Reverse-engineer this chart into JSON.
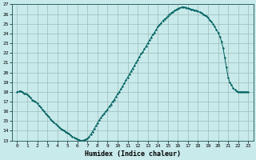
{
  "title": "",
  "xlabel": "Humidex (Indice chaleur)",
  "bg_color": "#c8eaea",
  "grid_color": "#b0cccc",
  "line_color": "#006060",
  "marker_color": "#006060",
  "xlim": [
    -0.5,
    23.5
  ],
  "ylim": [
    13,
    27
  ],
  "yticks": [
    13,
    14,
    15,
    16,
    17,
    18,
    19,
    20,
    21,
    22,
    23,
    24,
    25,
    26,
    27
  ],
  "xticks": [
    0,
    1,
    2,
    3,
    4,
    5,
    6,
    7,
    8,
    9,
    10,
    11,
    12,
    13,
    14,
    15,
    16,
    17,
    18,
    19,
    20,
    21,
    22,
    23
  ],
  "x_data": [
    0.0,
    0.167,
    0.333,
    0.5,
    0.667,
    0.833,
    1.0,
    1.167,
    1.333,
    1.5,
    1.667,
    1.833,
    2.0,
    2.167,
    2.333,
    2.5,
    2.667,
    2.833,
    3.0,
    3.167,
    3.333,
    3.5,
    3.667,
    3.833,
    4.0,
    4.167,
    4.333,
    4.5,
    4.667,
    4.833,
    5.0,
    5.167,
    5.333,
    5.5,
    5.667,
    5.833,
    6.0,
    6.167,
    6.333,
    6.5,
    6.667,
    6.833,
    7.0,
    7.167,
    7.333,
    7.5,
    7.667,
    7.833,
    8.0,
    8.167,
    8.333,
    8.5,
    8.667,
    8.833,
    9.0,
    9.167,
    9.333,
    9.5,
    9.667,
    9.833,
    10.0,
    10.167,
    10.333,
    10.5,
    10.667,
    10.833,
    11.0,
    11.167,
    11.333,
    11.5,
    11.667,
    11.833,
    12.0,
    12.167,
    12.333,
    12.5,
    12.667,
    12.833,
    13.0,
    13.167,
    13.333,
    13.5,
    13.667,
    13.833,
    14.0,
    14.167,
    14.333,
    14.5,
    14.667,
    14.833,
    15.0,
    15.167,
    15.333,
    15.5,
    15.667,
    15.833,
    16.0,
    16.167,
    16.333,
    16.5,
    16.667,
    16.833,
    17.0,
    17.167,
    17.333,
    17.5,
    17.667,
    17.833,
    18.0,
    18.167,
    18.333,
    18.5,
    18.667,
    18.833,
    19.0,
    19.167,
    19.333,
    19.5,
    19.667,
    19.833,
    20.0,
    20.167,
    20.333,
    20.5,
    20.667,
    20.833,
    21.0,
    21.167,
    21.333,
    21.5,
    21.667,
    21.833,
    22.0,
    22.167,
    22.333,
    22.5,
    22.667,
    22.833,
    23.0
  ],
  "y_data": [
    18.0,
    18.05,
    18.1,
    18.0,
    17.85,
    17.8,
    17.75,
    17.6,
    17.4,
    17.2,
    17.05,
    17.0,
    16.8,
    16.6,
    16.4,
    16.2,
    16.0,
    15.8,
    15.6,
    15.4,
    15.2,
    15.0,
    14.85,
    14.7,
    14.5,
    14.35,
    14.2,
    14.1,
    14.0,
    13.9,
    13.8,
    13.7,
    13.55,
    13.4,
    13.3,
    13.2,
    13.1,
    13.05,
    13.0,
    13.0,
    13.05,
    13.1,
    13.2,
    13.4,
    13.65,
    13.9,
    14.2,
    14.5,
    14.8,
    15.1,
    15.35,
    15.6,
    15.8,
    16.0,
    16.2,
    16.5,
    16.7,
    17.0,
    17.2,
    17.5,
    17.8,
    18.0,
    18.3,
    18.6,
    18.9,
    19.2,
    19.5,
    19.8,
    20.1,
    20.4,
    20.7,
    21.0,
    21.3,
    21.6,
    21.9,
    22.1,
    22.4,
    22.7,
    23.0,
    23.3,
    23.6,
    23.9,
    24.1,
    24.4,
    24.7,
    24.9,
    25.1,
    25.3,
    25.5,
    25.6,
    25.8,
    26.0,
    26.1,
    26.25,
    26.35,
    26.45,
    26.55,
    26.65,
    26.7,
    26.75,
    26.7,
    26.65,
    26.6,
    26.55,
    26.5,
    26.45,
    26.4,
    26.35,
    26.3,
    26.2,
    26.1,
    26.0,
    25.9,
    25.8,
    25.6,
    25.4,
    25.2,
    25.0,
    24.7,
    24.4,
    24.1,
    23.7,
    23.2,
    22.5,
    21.5,
    20.5,
    19.5,
    19.0,
    18.7,
    18.4,
    18.2,
    18.1,
    18.0,
    18.0,
    18.0,
    18.0,
    18.0,
    18.0,
    18.0
  ]
}
